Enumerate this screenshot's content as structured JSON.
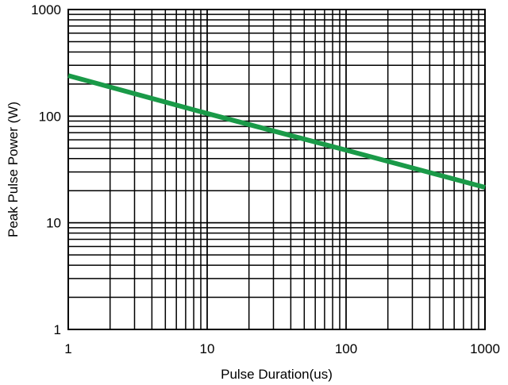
{
  "chart_data": {
    "type": "line",
    "title": "",
    "xlabel": "Pulse Duration(us)",
    "ylabel": "Peak Pulse Power (W)",
    "xscale": "log",
    "yscale": "log",
    "xlim": [
      1,
      1000
    ],
    "ylim": [
      1,
      1000
    ],
    "x_ticks": [
      "1",
      "10",
      "100",
      "1000"
    ],
    "y_ticks": [
      "1",
      "10",
      "100",
      "1000"
    ],
    "grid": true,
    "series": [
      {
        "color": "#1a9a48",
        "x": [
          1,
          10,
          100,
          1000
        ],
        "y": [
          240,
          106,
          48,
          21.5
        ]
      }
    ]
  }
}
